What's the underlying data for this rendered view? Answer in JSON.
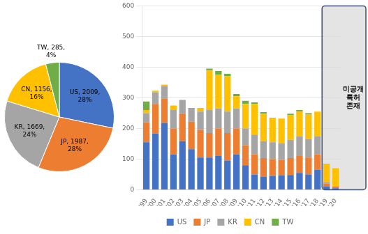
{
  "chart_data": [
    {
      "type": "bar",
      "stacked": true,
      "categories": [
        "'99",
        "'00",
        "'01",
        "'02",
        "'03",
        "'04",
        "'05",
        "'06",
        "'07",
        "'08",
        "'09",
        "'10",
        "'11",
        "'12",
        "'13",
        "'14",
        "'15",
        "'16",
        "'17",
        "'18",
        "'19",
        "'20"
      ],
      "series": [
        {
          "name": "US",
          "color": "#4472C4",
          "values": [
            155,
            183,
            218,
            115,
            158,
            132,
            105,
            105,
            110,
            95,
            115,
            80,
            50,
            43,
            45,
            47,
            48,
            55,
            50,
            65,
            10,
            5
          ]
        },
        {
          "name": "JP",
          "color": "#ED7D31",
          "values": [
            65,
            95,
            80,
            85,
            90,
            90,
            90,
            80,
            90,
            90,
            85,
            65,
            65,
            60,
            55,
            50,
            55,
            55,
            55,
            50,
            10,
            5
          ]
        },
        {
          "name": "KR",
          "color": "#A5A5A5",
          "values": [
            30,
            40,
            40,
            60,
            45,
            45,
            60,
            75,
            65,
            70,
            65,
            55,
            65,
            55,
            55,
            55,
            60,
            65,
            60,
            60,
            5,
            0
          ]
        },
        {
          "name": "CN",
          "color": "#FFC000",
          "values": [
            10,
            5,
            5,
            15,
            0,
            0,
            12,
            130,
            110,
            115,
            40,
            80,
            100,
            90,
            80,
            80,
            80,
            80,
            80,
            80,
            60,
            60
          ]
        },
        {
          "name": "TW",
          "color": "#70AD47",
          "values": [
            28,
            0,
            0,
            0,
            0,
            0,
            0,
            5,
            12,
            8,
            7,
            10,
            5,
            5,
            0,
            0,
            5,
            5,
            5,
            0,
            0,
            0
          ]
        }
      ],
      "ylim": [
        0,
        600
      ],
      "yticks": [
        0,
        100,
        200,
        300,
        400,
        500,
        600
      ],
      "grid": true,
      "legend": "bottom",
      "annotations": [
        {
          "text": "미공개\n특허\n존재",
          "categories": [
            "'19",
            "'20"
          ]
        }
      ]
    },
    {
      "type": "pie",
      "categories": [
        "US",
        "JP",
        "KR",
        "CN",
        "TW"
      ],
      "values": [
        2009,
        1987,
        1669,
        1156,
        285
      ],
      "colors": [
        "#4472C4",
        "#ED7D31",
        "#A5A5A5",
        "#FFC000",
        "#70AD47"
      ],
      "data_labels": true,
      "value_labels": [
        "US, 2009,\n28%",
        "JP, 1987,\n28%",
        "KR, 1669,\n24%",
        "CN, 1156,\n16%",
        "TW, 285,\n4%"
      ]
    }
  ]
}
